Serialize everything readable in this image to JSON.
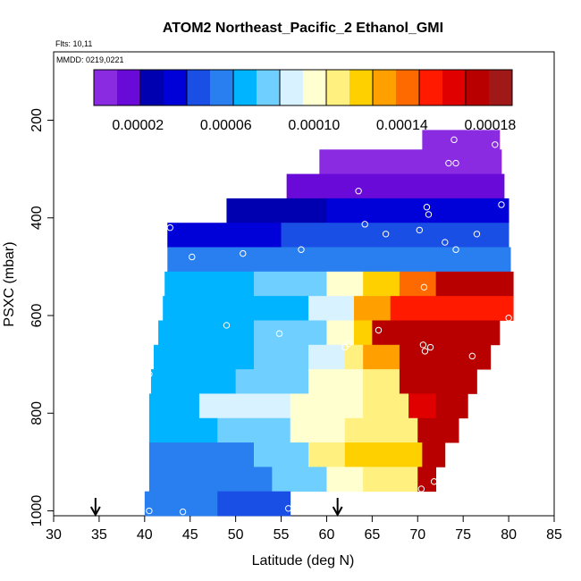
{
  "chart_data": {
    "type": "heatmap",
    "title": "ATOM2 Northeast_Pacific_2 Ethanol_GMI",
    "flights_label": "Flts: 10,11",
    "dates_label": "MMDD: 0219,0221",
    "xlabel": "Latitude (deg N)",
    "ylabel": "PSXC (mbar)",
    "xlim": [
      30,
      85
    ],
    "ylim": [
      1010,
      60
    ],
    "x_ticks": [
      "30",
      "35",
      "40",
      "45",
      "50",
      "55",
      "60",
      "65",
      "70",
      "75",
      "80",
      "85"
    ],
    "y_ticks": [
      {
        "value": 200,
        "label": "200"
      },
      {
        "value": 400,
        "label": "400"
      },
      {
        "value": 600,
        "label": "600"
      },
      {
        "value": 800,
        "label": "800"
      },
      {
        "value": 1000,
        "label": "1000"
      }
    ],
    "colorbar": {
      "min": 0.0,
      "max": 0.00019,
      "tick_values": [
        2e-05,
        6e-05,
        0.0001,
        0.00014,
        0.00018
      ],
      "tick_labels": [
        "0.00002",
        "0.00006",
        "0.00010",
        "0.00014",
        "0.00018"
      ],
      "colors": [
        "#8a2be2",
        "#6a0ad8",
        "#0000b0",
        "#0000d8",
        "#1a4fe6",
        "#2a7ff0",
        "#00b4ff",
        "#6fd0ff",
        "#d8f2ff",
        "#ffffd0",
        "#fff080",
        "#ffd000",
        "#ffa000",
        "#ff6a00",
        "#ff1a00",
        "#e00000",
        "#b80000",
        "#a01818"
      ]
    },
    "level_bands": [
      {
        "p_top": 220,
        "p_bot": 260,
        "segments": [
          [
            70.5,
            75,
            4.5e-06
          ],
          [
            75,
            79,
            7.5e-06
          ]
        ]
      },
      {
        "p_top": 260,
        "p_bot": 310,
        "segments": [
          [
            59.2,
            66,
            8.5e-06
          ],
          [
            66,
            79.2,
            8e-06
          ]
        ]
      },
      {
        "p_top": 310,
        "p_bot": 360,
        "segments": [
          [
            55.6,
            68,
            1.65e-05
          ],
          [
            68,
            79.5,
            1.75e-05
          ]
        ]
      },
      {
        "p_top": 360,
        "p_bot": 410,
        "segments": [
          [
            49,
            60,
            2.5e-05
          ],
          [
            60,
            72,
            3.3e-05
          ],
          [
            72,
            80,
            3.8e-05
          ]
        ]
      },
      {
        "p_top": 410,
        "p_bot": 460,
        "segments": [
          [
            42.5,
            55,
            3.85e-05
          ],
          [
            55,
            68,
            4.4e-05
          ],
          [
            68,
            80,
            4.75e-05
          ]
        ]
      },
      {
        "p_top": 460,
        "p_bot": 510,
        "segments": [
          [
            42.5,
            55,
            5.3e-05
          ],
          [
            55,
            70,
            5.6e-05
          ],
          [
            70,
            80.2,
            6.2e-05
          ]
        ]
      },
      {
        "p_top": 510,
        "p_bot": 560,
        "segments": [
          [
            42.2,
            52,
            7e-05
          ],
          [
            52,
            60,
            8.2e-05
          ],
          [
            60,
            64,
            0.000105
          ],
          [
            64,
            68,
            0.000122
          ],
          [
            68,
            72,
            0.000138
          ],
          [
            72,
            80.5,
            0.000175
          ]
        ]
      },
      {
        "p_top": 560,
        "p_bot": 610,
        "segments": [
          [
            42,
            50,
            6.5e-05
          ],
          [
            50,
            58,
            7.2e-05
          ],
          [
            58,
            63,
            9e-05
          ],
          [
            63,
            67,
            0.00013
          ],
          [
            67,
            74,
            0.000152
          ],
          [
            74,
            80.5,
            0.000158
          ]
        ]
      },
      {
        "p_top": 610,
        "p_bot": 660,
        "segments": [
          [
            41.5,
            52,
            7.2e-05
          ],
          [
            52,
            60,
            8.4e-05
          ],
          [
            60,
            63,
            9.8e-05
          ],
          [
            63,
            65,
            0.000125
          ],
          [
            65,
            79,
            0.000178
          ]
        ]
      },
      {
        "p_top": 660,
        "p_bot": 710,
        "segments": [
          [
            41,
            52,
            7e-05
          ],
          [
            52,
            58,
            8e-05
          ],
          [
            58,
            62,
            9.2e-05
          ],
          [
            62,
            64,
            0.000112
          ],
          [
            64,
            68,
            0.000135
          ],
          [
            68,
            72,
            0.000172
          ],
          [
            72,
            78,
            0.000178
          ]
        ]
      },
      {
        "p_top": 710,
        "p_bot": 760,
        "segments": [
          [
            40.7,
            50,
            6.5e-05
          ],
          [
            50,
            58,
            8e-05
          ],
          [
            58,
            64,
            9.5e-05
          ],
          [
            64,
            68,
            0.00011
          ],
          [
            68,
            72,
            0.00017
          ],
          [
            72,
            76.5,
            0.000178
          ]
        ]
      },
      {
        "p_top": 760,
        "p_bot": 810,
        "segments": [
          [
            40.5,
            46,
            7e-05
          ],
          [
            46,
            56,
            8.8e-05
          ],
          [
            56,
            64,
            0.0001
          ],
          [
            64,
            69,
            0.00011
          ],
          [
            69,
            72,
            0.000165
          ],
          [
            72,
            75.5,
            0.000175
          ]
        ]
      },
      {
        "p_top": 810,
        "p_bot": 860,
        "segments": [
          [
            40.5,
            48,
            6.5e-05
          ],
          [
            48,
            56,
            8e-05
          ],
          [
            56,
            62,
            9.8e-05
          ],
          [
            62,
            66,
            0.000106
          ],
          [
            66,
            70,
            0.000115
          ],
          [
            70,
            74.5,
            0.00017
          ]
        ]
      },
      {
        "p_top": 860,
        "p_bot": 910,
        "segments": [
          [
            40.5,
            52,
            6.2e-05
          ],
          [
            52,
            58,
            7.8e-05
          ],
          [
            58,
            62,
            0.00011
          ],
          [
            62,
            70.5,
            0.00012
          ],
          [
            70.5,
            73,
            0.000178
          ]
        ]
      },
      {
        "p_top": 910,
        "p_bot": 960,
        "segments": [
          [
            40.5,
            54,
            6e-05
          ],
          [
            54,
            60,
            7.6e-05
          ],
          [
            60,
            64,
            0.0001
          ],
          [
            64,
            70,
            0.000108
          ],
          [
            70,
            72,
            0.00017
          ]
        ]
      },
      {
        "p_top": 960,
        "p_bot": 1010,
        "segments": [
          [
            40,
            48,
            5.6e-05
          ],
          [
            48,
            56,
            4.3e-05
          ]
        ]
      }
    ],
    "sample_points": [
      [
        69.2,
        218
      ],
      [
        74,
        240
      ],
      [
        78.5,
        250
      ],
      [
        73.4,
        288
      ],
      [
        74.2,
        288
      ],
      [
        63.5,
        345
      ],
      [
        71,
        378
      ],
      [
        79.2,
        373
      ],
      [
        71.2,
        393
      ],
      [
        42.8,
        420
      ],
      [
        64.2,
        413
      ],
      [
        66.5,
        433
      ],
      [
        70.2,
        425
      ],
      [
        76.5,
        433
      ],
      [
        45.2,
        480
      ],
      [
        50.8,
        473
      ],
      [
        57.2,
        465
      ],
      [
        73,
        450
      ],
      [
        74.2,
        465
      ],
      [
        70.7,
        542
      ],
      [
        49,
        620
      ],
      [
        54.8,
        637
      ],
      [
        65.7,
        630
      ],
      [
        80,
        605
      ],
      [
        62,
        665
      ],
      [
        62.4,
        658
      ],
      [
        70.6,
        660
      ],
      [
        70.8,
        673
      ],
      [
        71.4,
        665
      ],
      [
        76,
        683
      ],
      [
        40.5,
        720
      ],
      [
        70.4,
        955
      ],
      [
        71.8,
        940
      ],
      [
        40.5,
        1000
      ],
      [
        44.2,
        1002
      ],
      [
        55.8,
        995
      ]
    ],
    "arrows_lat": [
      34.6,
      61.2
    ]
  }
}
